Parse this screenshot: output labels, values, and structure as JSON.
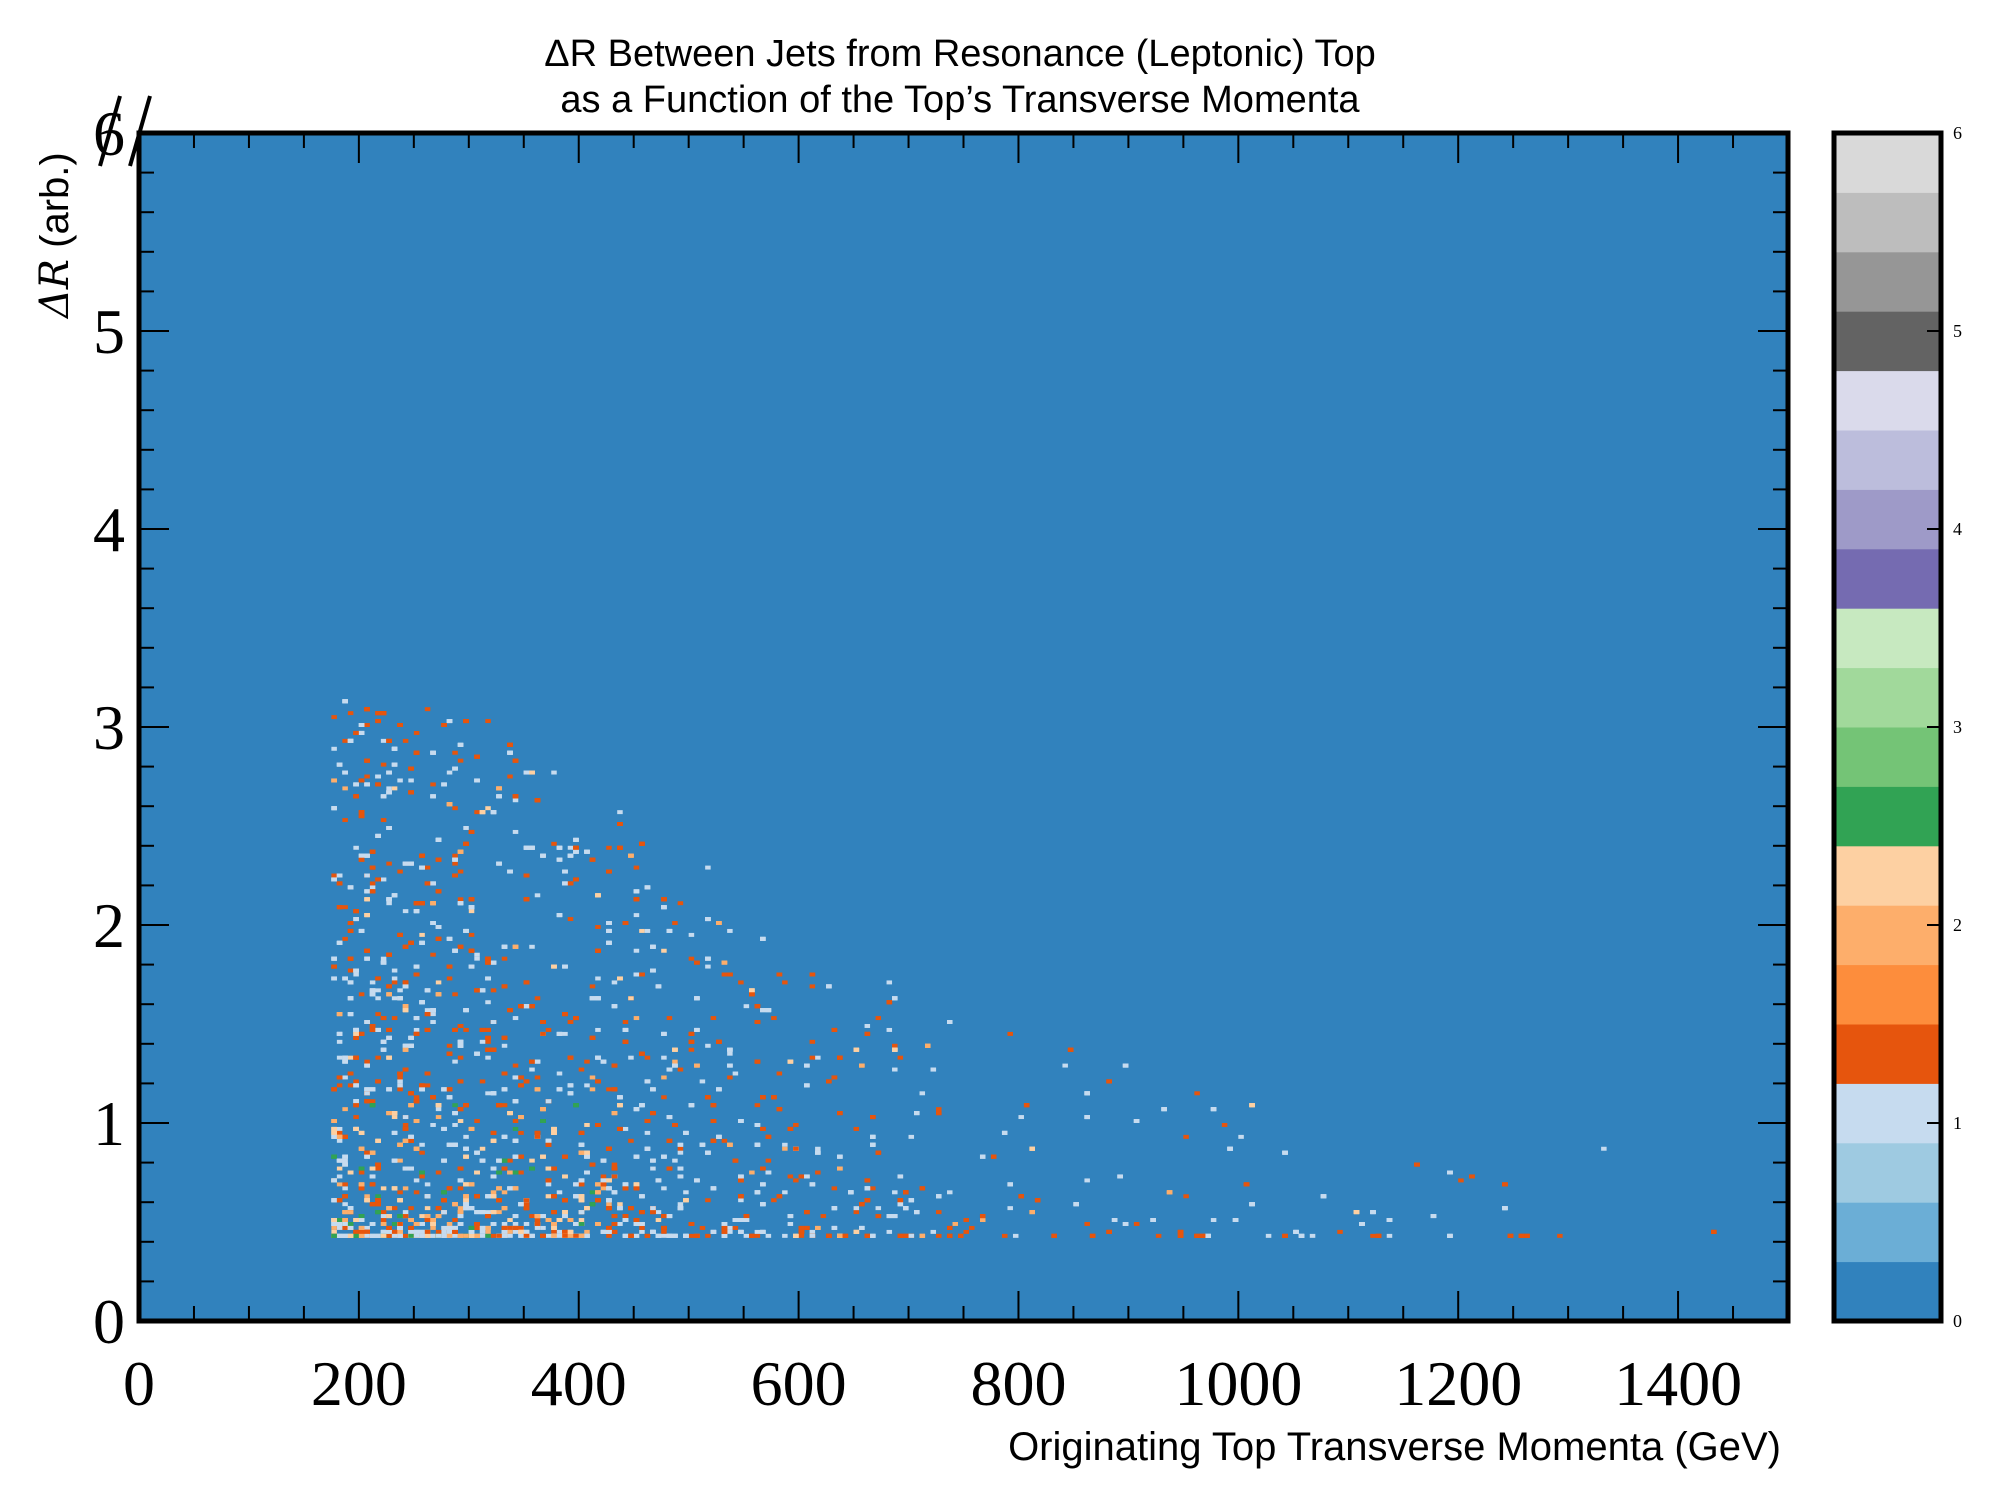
{
  "chart_data": {
    "type": "heatmap",
    "title": "ΔR Between Jets from Resonance (Leptonic) Top",
    "subtitle": "as a Function of the Top’s Transverse Momenta",
    "xlabel": "Originating Top Transverse Momenta (GeV)",
    "ylabel_symbol": "ΔR",
    "ylabel_suffix": " (arb.)",
    "xlim": [
      0,
      1500
    ],
    "ylim": [
      0,
      6
    ],
    "x_ticks": [
      0,
      200,
      400,
      600,
      800,
      1000,
      1200,
      1400
    ],
    "y_ticks": [
      0,
      1,
      2,
      3,
      4,
      5,
      6
    ],
    "x_tick_labels": [
      "0",
      "200",
      "400",
      "600",
      "800",
      "1000",
      "1200",
      "1400"
    ],
    "y_tick_labels": [
      "0",
      "1",
      "2",
      "3",
      "4",
      "5",
      "6"
    ],
    "grid": false,
    "background_value": 0,
    "colorbar": {
      "range": [
        0,
        6
      ],
      "ticks": [
        0,
        1,
        2,
        3,
        4,
        5,
        6
      ],
      "tick_labels": [
        "0",
        "1",
        "2",
        "3",
        "4",
        "5",
        "6"
      ],
      "colors": [
        "#3182bd",
        "#6baed6",
        "#9ecae1",
        "#c6dbef",
        "#e6550d",
        "#fd8d3c",
        "#fdae6b",
        "#fdd0a2",
        "#31a354",
        "#74c476",
        "#a1d99b",
        "#c7e9c0",
        "#756bb1",
        "#9e9ac8",
        "#bcbddc",
        "#dadaeb",
        "#636363",
        "#969696",
        "#bdbdbd",
        "#d9d9d9"
      ]
    },
    "bins": {
      "x_width": 5,
      "y_width": 0.02
    },
    "distribution": {
      "x_min": 175,
      "x_max": 1480,
      "y_min": 0.42,
      "points_x": [
        [
          200,
          1
        ],
        [
          300,
          0.8
        ],
        [
          400,
          0.55
        ],
        [
          500,
          0.35
        ],
        [
          600,
          0.22
        ],
        [
          700,
          0.13
        ],
        [
          800,
          0.07
        ],
        [
          1000,
          0.03
        ],
        [
          1500,
          0.005
        ]
      ],
      "points_y_high": [
        [
          200,
          3.15
        ],
        [
          300,
          3.1
        ],
        [
          400,
          2.7
        ],
        [
          500,
          2.4
        ],
        [
          600,
          2.0
        ],
        [
          700,
          1.7
        ],
        [
          800,
          1.5
        ],
        [
          1000,
          1.1
        ],
        [
          1400,
          0.9
        ]
      ],
      "count": 4800
    }
  }
}
